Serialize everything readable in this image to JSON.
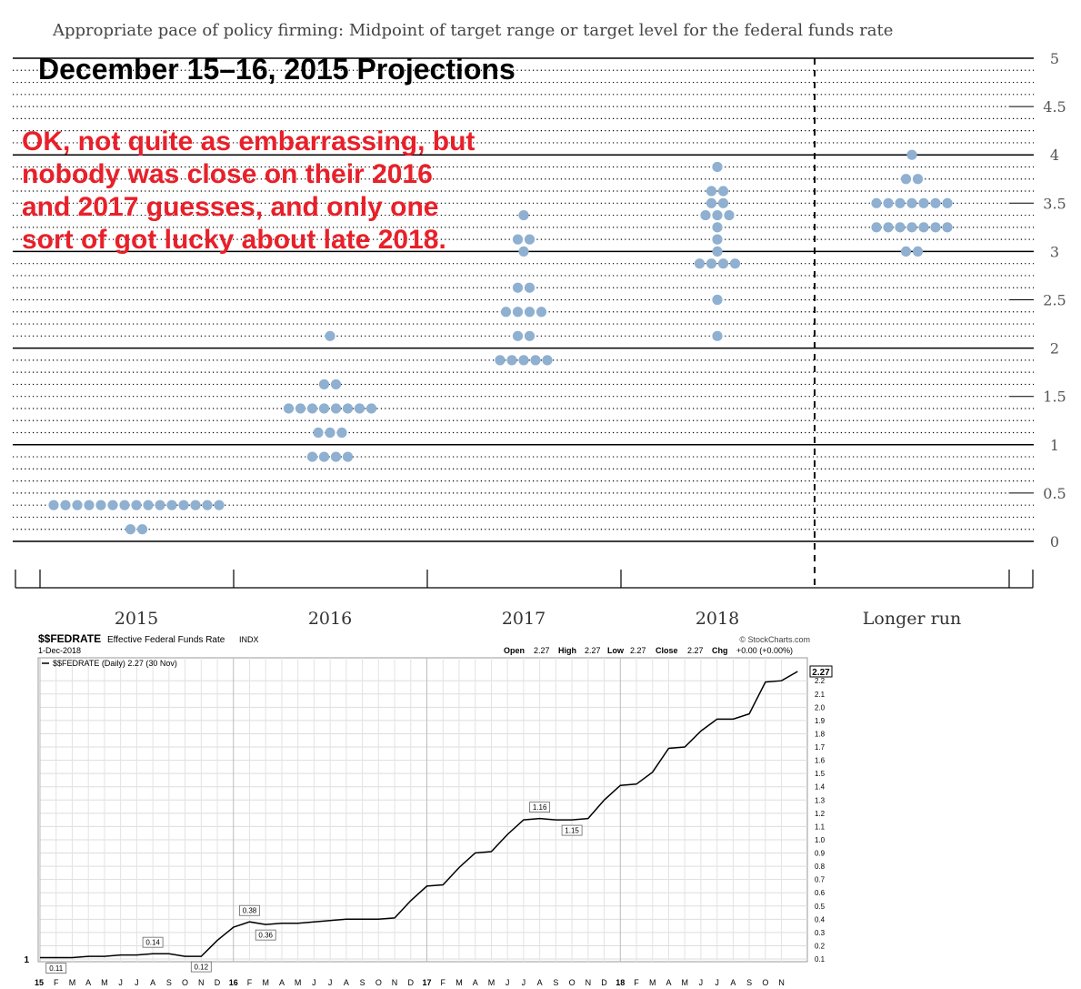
{
  "chart_data": [
    {
      "type": "scatter",
      "title": "Appropriate pace of policy firming: Midpoint of target range or target level for the federal funds rate",
      "categories": [
        "2015",
        "2016",
        "2017",
        "2018",
        "Longer run"
      ],
      "y_ticks": [
        "0",
        "0.5",
        "1",
        "1.5",
        "2",
        "2.5",
        "3",
        "3.5",
        "4",
        "4.5",
        "5"
      ],
      "ylim": [
        0,
        5
      ],
      "grid": "dotted every 0.125, solid every 1",
      "dot_color": "#8fb0d0",
      "points": [
        {
          "category": "2015",
          "groups": [
            {
              "y": 0.375,
              "count": 15
            },
            {
              "y": 0.125,
              "count": 2
            }
          ]
        },
        {
          "category": "2016",
          "groups": [
            {
              "y": 2.125,
              "count": 1
            },
            {
              "y": 1.625,
              "count": 2
            },
            {
              "y": 1.375,
              "count": 8
            },
            {
              "y": 1.125,
              "count": 3
            },
            {
              "y": 0.875,
              "count": 4
            }
          ]
        },
        {
          "category": "2017",
          "groups": [
            {
              "y": 3.375,
              "count": 1
            },
            {
              "y": 3.125,
              "count": 2
            },
            {
              "y": 3.0,
              "count": 1
            },
            {
              "y": 2.625,
              "count": 2
            },
            {
              "y": 2.375,
              "count": 4
            },
            {
              "y": 2.125,
              "count": 2
            },
            {
              "y": 1.875,
              "count": 5
            }
          ]
        },
        {
          "category": "2018",
          "groups": [
            {
              "y": 3.875,
              "count": 1
            },
            {
              "y": 3.625,
              "count": 2
            },
            {
              "y": 3.5,
              "count": 2
            },
            {
              "y": 3.375,
              "count": 3
            },
            {
              "y": 3.25,
              "count": 1
            },
            {
              "y": 3.125,
              "count": 1
            },
            {
              "y": 3.0,
              "count": 1
            },
            {
              "y": 2.875,
              "count": 4
            },
            {
              "y": 2.5,
              "count": 1
            },
            {
              "y": 2.125,
              "count": 1
            }
          ]
        },
        {
          "category": "Longer run",
          "groups": [
            {
              "y": 4.0,
              "count": 1
            },
            {
              "y": 3.75,
              "count": 2
            },
            {
              "y": 3.5,
              "count": 7
            },
            {
              "y": 3.25,
              "count": 7
            },
            {
              "y": 3.0,
              "count": 2
            }
          ]
        }
      ]
    },
    {
      "type": "line",
      "title": "$$FEDRATE",
      "subtitle": "Effective Federal Funds Rate",
      "exchange": "INDX",
      "date": "1-Dec-2018",
      "legend": "$$FEDRATE (Daily) 2.27 (30 Nov)",
      "source": "© StockCharts.com",
      "ohlc": {
        "open": "2.27",
        "high": "2.27",
        "low": "2.27",
        "close": "2.27",
        "chg": "+0.00 (+0.00%)"
      },
      "ylim": [
        0.1,
        2.27
      ],
      "y_ticks": [
        "0.1",
        "0.2",
        "0.3",
        "0.4",
        "0.5",
        "0.6",
        "0.7",
        "0.8",
        "0.9",
        "1.0",
        "1.1",
        "1.2",
        "1.3",
        "1.4",
        "1.5",
        "1.6",
        "1.7",
        "1.8",
        "1.9",
        "2.0",
        "2.1",
        "2.2"
      ],
      "y_left_label": "1",
      "last_value": "2.27",
      "x_labels": [
        "15",
        "F",
        "M",
        "A",
        "M",
        "J",
        "J",
        "A",
        "S",
        "O",
        "N",
        "D",
        "16",
        "F",
        "M",
        "A",
        "M",
        "J",
        "J",
        "A",
        "S",
        "O",
        "N",
        "D",
        "17",
        "F",
        "M",
        "A",
        "M",
        "J",
        "J",
        "A",
        "S",
        "O",
        "N",
        "D",
        "18",
        "F",
        "M",
        "A",
        "M",
        "J",
        "J",
        "A",
        "S",
        "O",
        "N"
      ],
      "series": [
        {
          "values": [
            0.11,
            0.11,
            0.11,
            0.12,
            0.12,
            0.13,
            0.13,
            0.14,
            0.14,
            0.12,
            0.12,
            0.24,
            0.34,
            0.38,
            0.36,
            0.37,
            0.37,
            0.38,
            0.39,
            0.4,
            0.4,
            0.4,
            0.41,
            0.54,
            0.65,
            0.66,
            0.79,
            0.9,
            0.91,
            1.04,
            1.15,
            1.16,
            1.15,
            1.15,
            1.16,
            1.3,
            1.41,
            1.42,
            1.51,
            1.69,
            1.7,
            1.82,
            1.91,
            1.91,
            1.95,
            2.19,
            2.2,
            2.27
          ]
        }
      ],
      "annotations": [
        {
          "month_index": 1,
          "value": "0.11",
          "position": "below"
        },
        {
          "month_index": 7,
          "value": "0.14",
          "position": "above"
        },
        {
          "month_index": 10,
          "value": "0.12",
          "position": "below"
        },
        {
          "month_index": 13,
          "value": "0.38",
          "position": "above"
        },
        {
          "month_index": 14,
          "value": "0.36",
          "position": "below"
        },
        {
          "month_index": 31,
          "value": "1.16",
          "position": "above"
        },
        {
          "month_index": 33,
          "value": "1.15",
          "position": "below"
        }
      ]
    }
  ],
  "overlay": {
    "heading": "December 15–16, 2015 Projections",
    "note_lines": [
      "OK, not quite as embarrassing, but",
      "nobody was close on their 2016",
      "and 2017 guesses, and only one",
      "sort of got lucky about late 2018."
    ],
    "note_color": "#e8202a"
  }
}
